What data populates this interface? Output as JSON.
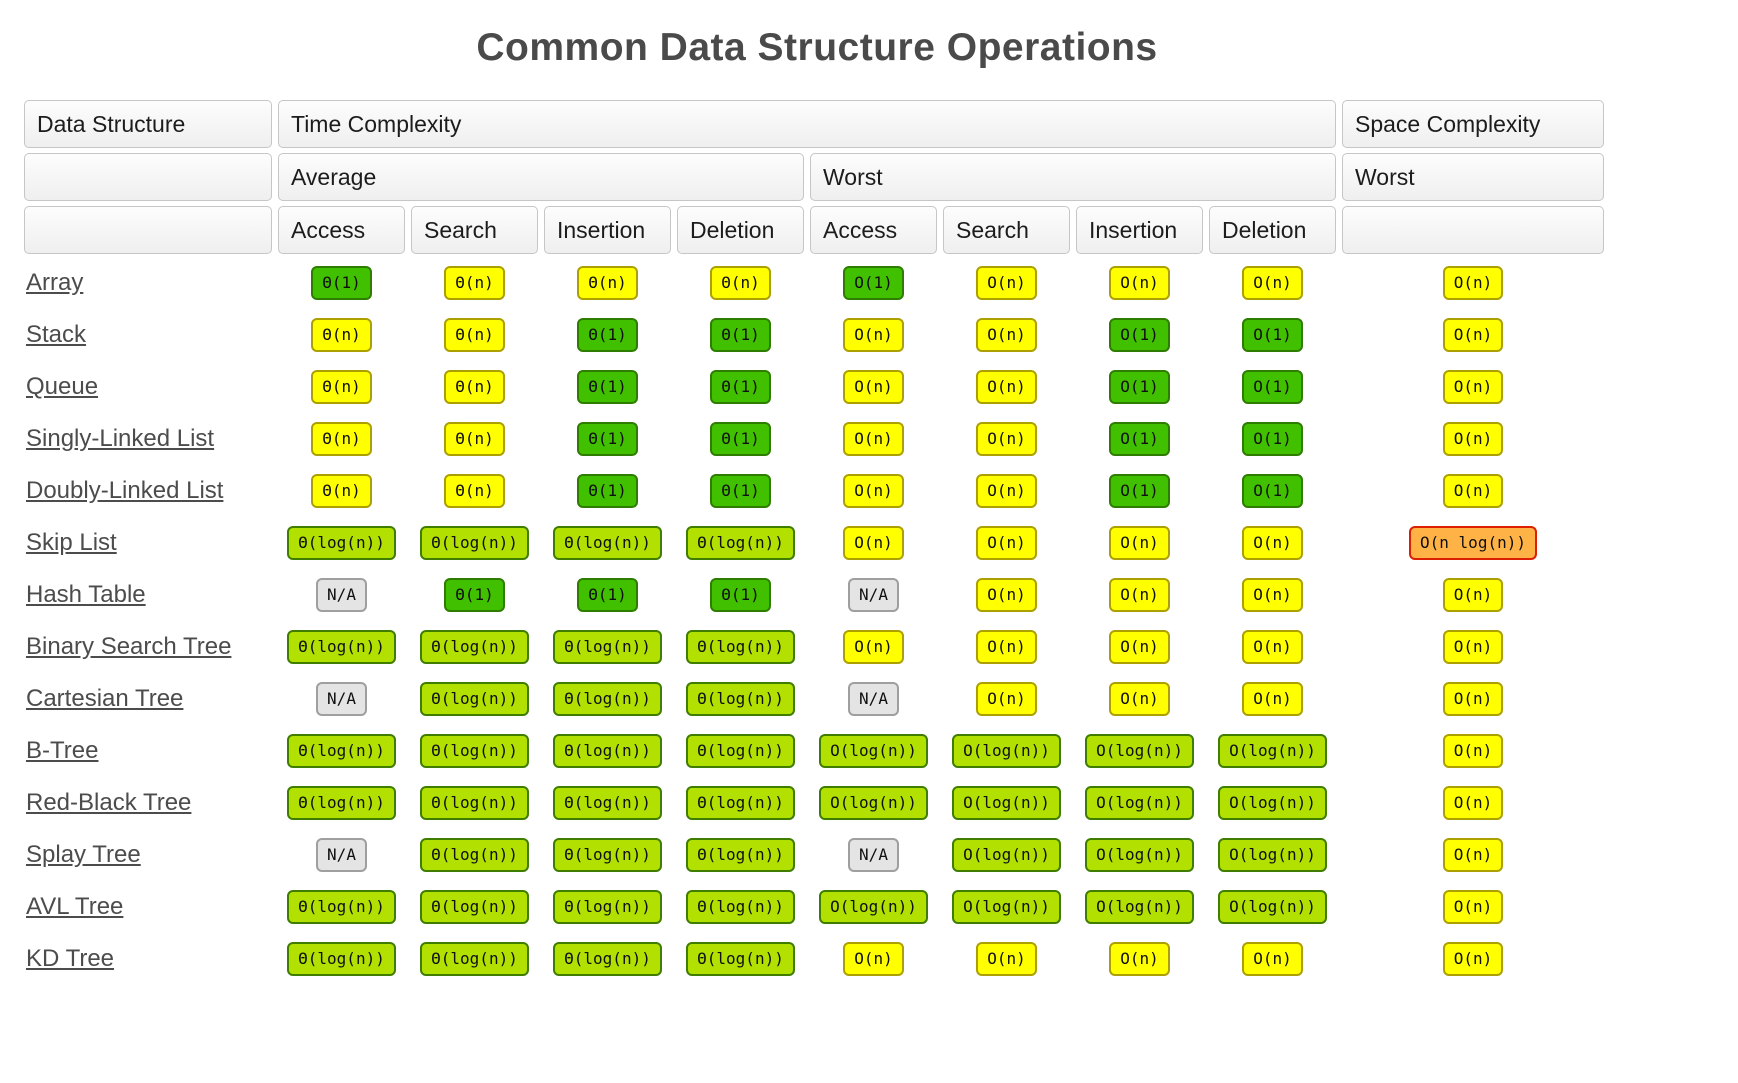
{
  "title": "Common Data Structure Operations",
  "header": {
    "data_structure": "Data Structure",
    "time_complexity": "Time Complexity",
    "space_complexity": "Space Complexity",
    "average": "Average",
    "worst": "Worst",
    "space_worst": "Worst",
    "operations": [
      "Access",
      "Search",
      "Insertion",
      "Deletion"
    ]
  },
  "colors": {
    "green": "#41c000",
    "green_border": "#2e7d00",
    "yellowgreen": "#b2e000",
    "yellowgreen_border": "#3e7d00",
    "yellow": "#ffff00",
    "yellow_border": "#aba000",
    "orange": "#ffb347",
    "orange_border": "#db1f00",
    "gray": "#e4e4e4",
    "gray_border": "#9f9f9f"
  },
  "rows": [
    {
      "name": "Array",
      "average": [
        {
          "t": "Θ(1)",
          "c": "green"
        },
        {
          "t": "Θ(n)",
          "c": "yellow"
        },
        {
          "t": "Θ(n)",
          "c": "yellow"
        },
        {
          "t": "Θ(n)",
          "c": "yellow"
        }
      ],
      "worst": [
        {
          "t": "O(1)",
          "c": "green"
        },
        {
          "t": "O(n)",
          "c": "yellow"
        },
        {
          "t": "O(n)",
          "c": "yellow"
        },
        {
          "t": "O(n)",
          "c": "yellow"
        }
      ],
      "space": {
        "t": "O(n)",
        "c": "yellow"
      }
    },
    {
      "name": "Stack",
      "average": [
        {
          "t": "Θ(n)",
          "c": "yellow"
        },
        {
          "t": "Θ(n)",
          "c": "yellow"
        },
        {
          "t": "Θ(1)",
          "c": "green"
        },
        {
          "t": "Θ(1)",
          "c": "green"
        }
      ],
      "worst": [
        {
          "t": "O(n)",
          "c": "yellow"
        },
        {
          "t": "O(n)",
          "c": "yellow"
        },
        {
          "t": "O(1)",
          "c": "green"
        },
        {
          "t": "O(1)",
          "c": "green"
        }
      ],
      "space": {
        "t": "O(n)",
        "c": "yellow"
      }
    },
    {
      "name": "Queue",
      "average": [
        {
          "t": "Θ(n)",
          "c": "yellow"
        },
        {
          "t": "Θ(n)",
          "c": "yellow"
        },
        {
          "t": "Θ(1)",
          "c": "green"
        },
        {
          "t": "Θ(1)",
          "c": "green"
        }
      ],
      "worst": [
        {
          "t": "O(n)",
          "c": "yellow"
        },
        {
          "t": "O(n)",
          "c": "yellow"
        },
        {
          "t": "O(1)",
          "c": "green"
        },
        {
          "t": "O(1)",
          "c": "green"
        }
      ],
      "space": {
        "t": "O(n)",
        "c": "yellow"
      }
    },
    {
      "name": "Singly-Linked List",
      "average": [
        {
          "t": "Θ(n)",
          "c": "yellow"
        },
        {
          "t": "Θ(n)",
          "c": "yellow"
        },
        {
          "t": "Θ(1)",
          "c": "green"
        },
        {
          "t": "Θ(1)",
          "c": "green"
        }
      ],
      "worst": [
        {
          "t": "O(n)",
          "c": "yellow"
        },
        {
          "t": "O(n)",
          "c": "yellow"
        },
        {
          "t": "O(1)",
          "c": "green"
        },
        {
          "t": "O(1)",
          "c": "green"
        }
      ],
      "space": {
        "t": "O(n)",
        "c": "yellow"
      }
    },
    {
      "name": "Doubly-Linked List",
      "average": [
        {
          "t": "Θ(n)",
          "c": "yellow"
        },
        {
          "t": "Θ(n)",
          "c": "yellow"
        },
        {
          "t": "Θ(1)",
          "c": "green"
        },
        {
          "t": "Θ(1)",
          "c": "green"
        }
      ],
      "worst": [
        {
          "t": "O(n)",
          "c": "yellow"
        },
        {
          "t": "O(n)",
          "c": "yellow"
        },
        {
          "t": "O(1)",
          "c": "green"
        },
        {
          "t": "O(1)",
          "c": "green"
        }
      ],
      "space": {
        "t": "O(n)",
        "c": "yellow"
      }
    },
    {
      "name": "Skip List",
      "average": [
        {
          "t": "Θ(log(n))",
          "c": "yellowgreen"
        },
        {
          "t": "Θ(log(n))",
          "c": "yellowgreen"
        },
        {
          "t": "Θ(log(n))",
          "c": "yellowgreen"
        },
        {
          "t": "Θ(log(n))",
          "c": "yellowgreen"
        }
      ],
      "worst": [
        {
          "t": "O(n)",
          "c": "yellow"
        },
        {
          "t": "O(n)",
          "c": "yellow"
        },
        {
          "t": "O(n)",
          "c": "yellow"
        },
        {
          "t": "O(n)",
          "c": "yellow"
        }
      ],
      "space": {
        "t": "O(n log(n))",
        "c": "orange"
      }
    },
    {
      "name": "Hash Table",
      "average": [
        {
          "t": "N/A",
          "c": "gray"
        },
        {
          "t": "Θ(1)",
          "c": "green"
        },
        {
          "t": "Θ(1)",
          "c": "green"
        },
        {
          "t": "Θ(1)",
          "c": "green"
        }
      ],
      "worst": [
        {
          "t": "N/A",
          "c": "gray"
        },
        {
          "t": "O(n)",
          "c": "yellow"
        },
        {
          "t": "O(n)",
          "c": "yellow"
        },
        {
          "t": "O(n)",
          "c": "yellow"
        }
      ],
      "space": {
        "t": "O(n)",
        "c": "yellow"
      }
    },
    {
      "name": "Binary Search Tree",
      "average": [
        {
          "t": "Θ(log(n))",
          "c": "yellowgreen"
        },
        {
          "t": "Θ(log(n))",
          "c": "yellowgreen"
        },
        {
          "t": "Θ(log(n))",
          "c": "yellowgreen"
        },
        {
          "t": "Θ(log(n))",
          "c": "yellowgreen"
        }
      ],
      "worst": [
        {
          "t": "O(n)",
          "c": "yellow"
        },
        {
          "t": "O(n)",
          "c": "yellow"
        },
        {
          "t": "O(n)",
          "c": "yellow"
        },
        {
          "t": "O(n)",
          "c": "yellow"
        }
      ],
      "space": {
        "t": "O(n)",
        "c": "yellow"
      }
    },
    {
      "name": "Cartesian Tree",
      "average": [
        {
          "t": "N/A",
          "c": "gray"
        },
        {
          "t": "Θ(log(n))",
          "c": "yellowgreen"
        },
        {
          "t": "Θ(log(n))",
          "c": "yellowgreen"
        },
        {
          "t": "Θ(log(n))",
          "c": "yellowgreen"
        }
      ],
      "worst": [
        {
          "t": "N/A",
          "c": "gray"
        },
        {
          "t": "O(n)",
          "c": "yellow"
        },
        {
          "t": "O(n)",
          "c": "yellow"
        },
        {
          "t": "O(n)",
          "c": "yellow"
        }
      ],
      "space": {
        "t": "O(n)",
        "c": "yellow"
      }
    },
    {
      "name": "B-Tree",
      "average": [
        {
          "t": "Θ(log(n))",
          "c": "yellowgreen"
        },
        {
          "t": "Θ(log(n))",
          "c": "yellowgreen"
        },
        {
          "t": "Θ(log(n))",
          "c": "yellowgreen"
        },
        {
          "t": "Θ(log(n))",
          "c": "yellowgreen"
        }
      ],
      "worst": [
        {
          "t": "O(log(n))",
          "c": "yellowgreen"
        },
        {
          "t": "O(log(n))",
          "c": "yellowgreen"
        },
        {
          "t": "O(log(n))",
          "c": "yellowgreen"
        },
        {
          "t": "O(log(n))",
          "c": "yellowgreen"
        }
      ],
      "space": {
        "t": "O(n)",
        "c": "yellow"
      }
    },
    {
      "name": "Red-Black Tree",
      "average": [
        {
          "t": "Θ(log(n))",
          "c": "yellowgreen"
        },
        {
          "t": "Θ(log(n))",
          "c": "yellowgreen"
        },
        {
          "t": "Θ(log(n))",
          "c": "yellowgreen"
        },
        {
          "t": "Θ(log(n))",
          "c": "yellowgreen"
        }
      ],
      "worst": [
        {
          "t": "O(log(n))",
          "c": "yellowgreen"
        },
        {
          "t": "O(log(n))",
          "c": "yellowgreen"
        },
        {
          "t": "O(log(n))",
          "c": "yellowgreen"
        },
        {
          "t": "O(log(n))",
          "c": "yellowgreen"
        }
      ],
      "space": {
        "t": "O(n)",
        "c": "yellow"
      }
    },
    {
      "name": "Splay Tree",
      "average": [
        {
          "t": "N/A",
          "c": "gray"
        },
        {
          "t": "Θ(log(n))",
          "c": "yellowgreen"
        },
        {
          "t": "Θ(log(n))",
          "c": "yellowgreen"
        },
        {
          "t": "Θ(log(n))",
          "c": "yellowgreen"
        }
      ],
      "worst": [
        {
          "t": "N/A",
          "c": "gray"
        },
        {
          "t": "O(log(n))",
          "c": "yellowgreen"
        },
        {
          "t": "O(log(n))",
          "c": "yellowgreen"
        },
        {
          "t": "O(log(n))",
          "c": "yellowgreen"
        }
      ],
      "space": {
        "t": "O(n)",
        "c": "yellow"
      }
    },
    {
      "name": "AVL Tree",
      "average": [
        {
          "t": "Θ(log(n))",
          "c": "yellowgreen"
        },
        {
          "t": "Θ(log(n))",
          "c": "yellowgreen"
        },
        {
          "t": "Θ(log(n))",
          "c": "yellowgreen"
        },
        {
          "t": "Θ(log(n))",
          "c": "yellowgreen"
        }
      ],
      "worst": [
        {
          "t": "O(log(n))",
          "c": "yellowgreen"
        },
        {
          "t": "O(log(n))",
          "c": "yellowgreen"
        },
        {
          "t": "O(log(n))",
          "c": "yellowgreen"
        },
        {
          "t": "O(log(n))",
          "c": "yellowgreen"
        }
      ],
      "space": {
        "t": "O(n)",
        "c": "yellow"
      }
    },
    {
      "name": "KD Tree",
      "average": [
        {
          "t": "Θ(log(n))",
          "c": "yellowgreen"
        },
        {
          "t": "Θ(log(n))",
          "c": "yellowgreen"
        },
        {
          "t": "Θ(log(n))",
          "c": "yellowgreen"
        },
        {
          "t": "Θ(log(n))",
          "c": "yellowgreen"
        }
      ],
      "worst": [
        {
          "t": "O(n)",
          "c": "yellow"
        },
        {
          "t": "O(n)",
          "c": "yellow"
        },
        {
          "t": "O(n)",
          "c": "yellow"
        },
        {
          "t": "O(n)",
          "c": "yellow"
        }
      ],
      "space": {
        "t": "O(n)",
        "c": "yellow"
      }
    }
  ]
}
